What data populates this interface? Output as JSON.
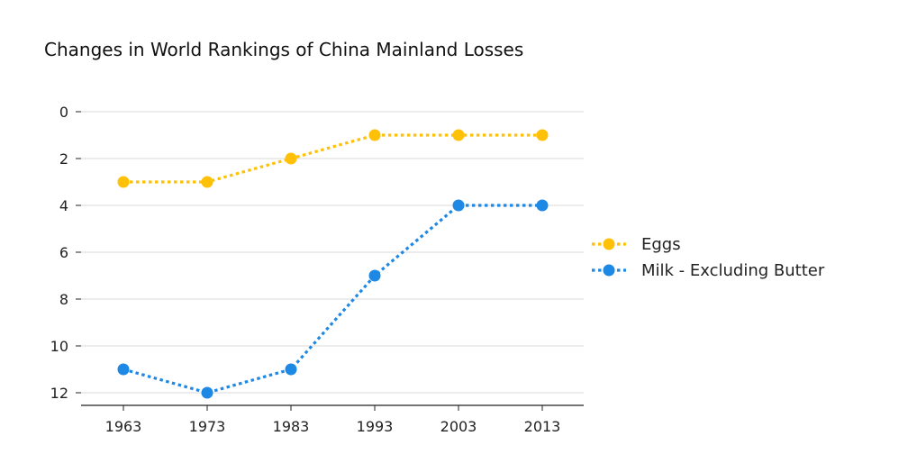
{
  "chart_data": {
    "type": "line",
    "title": "Changes in World Rankings of China Mainland Losses",
    "xlabel": "",
    "ylabel": "",
    "x": [
      "1963",
      "1973",
      "1983",
      "1993",
      "2003",
      "2013"
    ],
    "y_ticks": [
      "0",
      "2",
      "4",
      "6",
      "8",
      "10",
      "12"
    ],
    "ylim": [
      0,
      12
    ],
    "y_inverted": true,
    "grid": "horizontal",
    "legend_position": "right",
    "series": [
      {
        "name": "Eggs",
        "color": "#FFC107",
        "line_style": "dotted",
        "marker": "circle",
        "values": [
          3,
          3,
          2,
          1,
          1,
          1
        ]
      },
      {
        "name": "Milk - Excluding Butter",
        "color": "#1E88E5",
        "line_style": "dotted",
        "marker": "circle",
        "values": [
          11,
          12,
          11,
          7,
          4,
          4
        ]
      }
    ]
  }
}
